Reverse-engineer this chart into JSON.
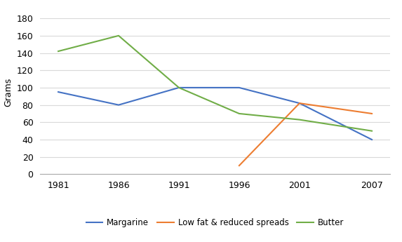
{
  "years": [
    1981,
    1986,
    1991,
    1996,
    2001,
    2007
  ],
  "margarine": [
    95,
    80,
    100,
    100,
    82,
    40
  ],
  "low_fat": [
    null,
    null,
    null,
    10,
    82,
    70
  ],
  "butter": [
    142,
    160,
    100,
    70,
    63,
    50
  ],
  "margarine_color": "#4472C4",
  "low_fat_color": "#ED7D31",
  "butter_color": "#70AD47",
  "ylabel": "Grams",
  "ylim": [
    0,
    190
  ],
  "yticks": [
    0,
    20,
    40,
    60,
    80,
    100,
    120,
    140,
    160,
    180
  ],
  "legend_labels": [
    "Margarine",
    "Low fat & reduced spreads",
    "Butter"
  ],
  "background_color": "#FFFFFF",
  "grid_color": "#D9D9D9"
}
